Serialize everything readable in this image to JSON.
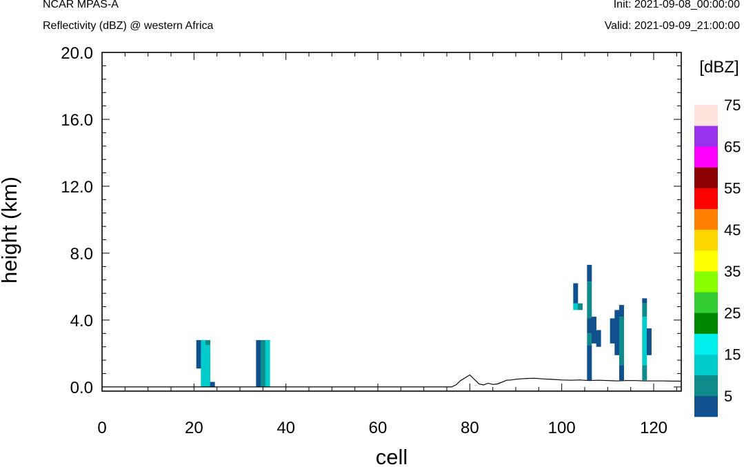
{
  "header": {
    "model": "NCAR MPAS-A",
    "field": "Reflectivity (dBZ) @ western Africa",
    "init": "Init: 2021-09-08_00:00:00",
    "valid": "Valid: 2021-09-09_21:00:00"
  },
  "colors": {
    "bins": [
      "#11508f",
      "#0f8b8b",
      "#00cccc",
      "#00f0f0",
      "#008800",
      "#33cc33",
      "#88ff00",
      "#ffff00",
      "#ffd700",
      "#ff8000",
      "#ff0000",
      "#8b0000",
      "#ff00ff",
      "#9933ee",
      "#ffe4dd"
    ]
  },
  "chart_data": {
    "type": "heatmap",
    "xlabel": "cell",
    "ylabel": "height (km)",
    "xlim": [
      0,
      126
    ],
    "ylim": [
      -0.25,
      20
    ],
    "xticks": [
      0,
      20,
      40,
      60,
      80,
      100,
      120
    ],
    "xtick_labels": [
      "0",
      "20",
      "40",
      "60",
      "80",
      "100",
      "120"
    ],
    "yticks": [
      0,
      4,
      8,
      12,
      16,
      20
    ],
    "ytick_labels": [
      "0.0",
      "4.0",
      "8.0",
      "12.0",
      "16.0",
      "20.0"
    ],
    "colorbar": {
      "title": "[dBZ]",
      "boundaries": [
        0,
        5,
        10,
        15,
        20,
        25,
        30,
        35,
        40,
        45,
        50,
        55,
        60,
        65,
        70,
        75
      ],
      "tick_values": [
        5,
        15,
        25,
        35,
        45,
        55,
        65,
        75
      ],
      "tick_labels": [
        "5",
        "15",
        "25",
        "35",
        "45",
        "55",
        "65",
        "75"
      ]
    },
    "cells": [
      {
        "x": 21,
        "y0": 1.1,
        "y1": 2.8,
        "dbz": 3
      },
      {
        "x": 22,
        "y0": 0,
        "y1": 2.8,
        "dbz": 13
      },
      {
        "x": 23,
        "y0": 0,
        "y1": 2.5,
        "dbz": 13
      },
      {
        "x": 23,
        "y0": 2.5,
        "y1": 2.8,
        "dbz": 8
      },
      {
        "x": 24,
        "y0": 0,
        "y1": 0.3,
        "dbz": 3
      },
      {
        "x": 34,
        "y0": 0,
        "y1": 2.8,
        "dbz": 3
      },
      {
        "x": 35,
        "y0": 0,
        "y1": 2.8,
        "dbz": 8
      },
      {
        "x": 36,
        "y0": 0,
        "y1": 2.8,
        "dbz": 13
      },
      {
        "x": 103,
        "y0": 4.6,
        "y1": 5.0,
        "dbz": 13
      },
      {
        "x": 103,
        "y0": 5.0,
        "y1": 6.2,
        "dbz": 3
      },
      {
        "x": 104,
        "y0": 4.6,
        "y1": 5.0,
        "dbz": 8
      },
      {
        "x": 106,
        "y0": 0.4,
        "y1": 2.5,
        "dbz": 3
      },
      {
        "x": 106,
        "y0": 2.5,
        "y1": 3.2,
        "dbz": 8
      },
      {
        "x": 106,
        "y0": 3.2,
        "y1": 4.1,
        "dbz": 3
      },
      {
        "x": 106,
        "y0": 4.1,
        "y1": 6.3,
        "dbz": 8
      },
      {
        "x": 106,
        "y0": 6.3,
        "y1": 7.3,
        "dbz": 3
      },
      {
        "x": 107,
        "y0": 2.6,
        "y1": 4.2,
        "dbz": 3
      },
      {
        "x": 108,
        "y0": 2.4,
        "y1": 3.4,
        "dbz": 3
      },
      {
        "x": 111,
        "y0": 2.6,
        "y1": 4.1,
        "dbz": 3
      },
      {
        "x": 112,
        "y0": 1.9,
        "y1": 4.6,
        "dbz": 3
      },
      {
        "x": 113,
        "y0": 0.4,
        "y1": 1.3,
        "dbz": 3
      },
      {
        "x": 113,
        "y0": 1.3,
        "y1": 4.2,
        "dbz": 8
      },
      {
        "x": 113,
        "y0": 4.2,
        "y1": 4.9,
        "dbz": 3
      },
      {
        "x": 118,
        "y0": 0.4,
        "y1": 1.3,
        "dbz": 8
      },
      {
        "x": 118,
        "y0": 1.3,
        "y1": 4.2,
        "dbz": 13
      },
      {
        "x": 118,
        "y0": 4.2,
        "y1": 5.0,
        "dbz": 8
      },
      {
        "x": 118,
        "y0": 5.0,
        "y1": 5.3,
        "dbz": 3
      },
      {
        "x": 119,
        "y0": 1.9,
        "y1": 3.5,
        "dbz": 3
      }
    ],
    "terrain": {
      "x": [
        0,
        76,
        77,
        78,
        79,
        80,
        81,
        82,
        83,
        84,
        85,
        86,
        87,
        88,
        89,
        90,
        92,
        94,
        96,
        98,
        100,
        102,
        104,
        106,
        108,
        110,
        112,
        114,
        116,
        118,
        120,
        122,
        124,
        126
      ],
      "y": [
        0,
        0,
        0.12,
        0.38,
        0.55,
        0.72,
        0.45,
        0.18,
        0.12,
        0.22,
        0.15,
        0.18,
        0.28,
        0.4,
        0.42,
        0.46,
        0.5,
        0.52,
        0.48,
        0.45,
        0.42,
        0.4,
        0.42,
        0.38,
        0.4,
        0.38,
        0.36,
        0.38,
        0.38,
        0.36,
        0.36,
        0.36,
        0.35,
        0.35
      ]
    }
  }
}
